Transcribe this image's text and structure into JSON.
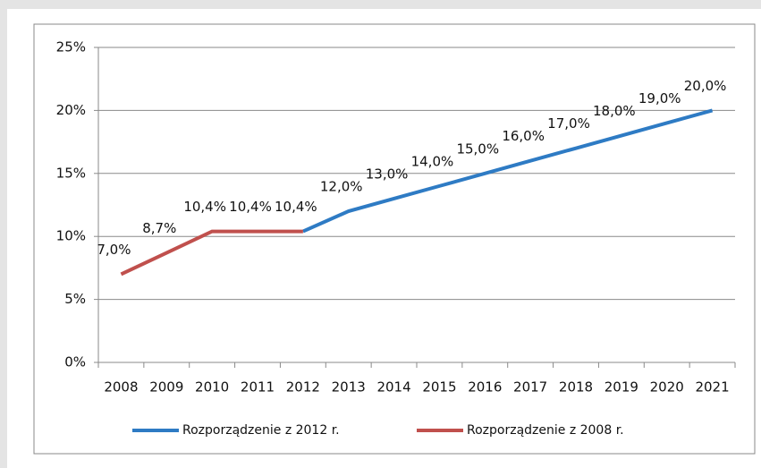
{
  "chart_data": {
    "type": "line",
    "categories": [
      "2008",
      "2009",
      "2010",
      "2011",
      "2012",
      "2013",
      "2014",
      "2015",
      "2016",
      "2017",
      "2018",
      "2019",
      "2020",
      "2021"
    ],
    "series": [
      {
        "name": "Rozporządzenie z 2012 r.",
        "color": "#2e7bc4",
        "values": [
          null,
          null,
          null,
          null,
          10.4,
          12.0,
          13.0,
          14.0,
          15.0,
          16.0,
          17.0,
          18.0,
          19.0,
          20.0
        ],
        "value_labels": [
          null,
          null,
          null,
          null,
          null,
          "12,0%",
          "13,0%",
          "14,0%",
          "15,0%",
          "16,0%",
          "17,0%",
          "18,0%",
          "19,0%",
          "20,0%"
        ]
      },
      {
        "name": "Rozporządzenie z 2008 r.",
        "color": "#c0504d",
        "values": [
          7.0,
          8.7,
          10.4,
          10.4,
          10.4,
          null,
          null,
          null,
          null,
          null,
          null,
          null,
          null,
          null
        ],
        "value_labels": [
          "7,0%",
          "8,7%",
          "10,4%",
          "10,4%",
          "10,4%",
          null,
          null,
          null,
          null,
          null,
          null,
          null,
          null,
          null
        ]
      }
    ],
    "ylim": [
      0,
      25
    ],
    "yticks": [
      {
        "value": 0,
        "label": "0%"
      },
      {
        "value": 5,
        "label": "5%"
      },
      {
        "value": 10,
        "label": "10%"
      },
      {
        "value": 15,
        "label": "15%"
      },
      {
        "value": 20,
        "label": "20%"
      },
      {
        "value": 25,
        "label": "25%"
      }
    ],
    "grid": true
  }
}
